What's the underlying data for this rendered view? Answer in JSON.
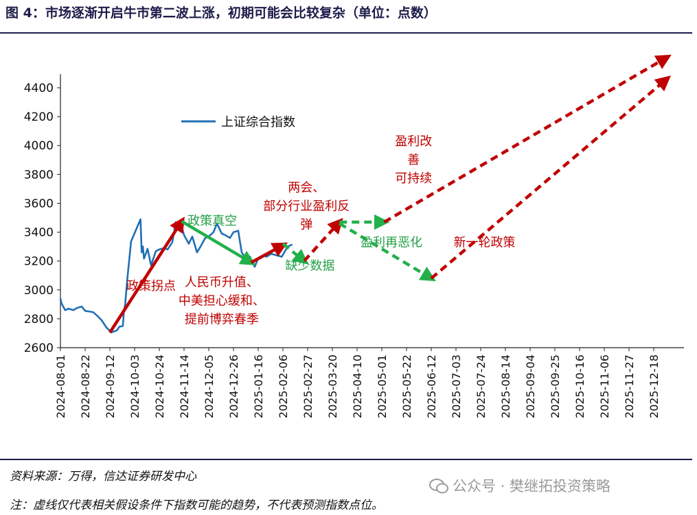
{
  "header": {
    "title": "图 4：市场逐渐开启牛市第二波上涨，初期可能会比较复杂（单位：点数）"
  },
  "footer": {
    "source": "资料来源：万得，信达证券研发中心",
    "note": "注：虚线仅代表相关假设条件下指数可能的趋势，不代表预测指数点位。",
    "watermark": "公众号 · 樊继拓投资策略"
  },
  "colors": {
    "index_line": "#1f6fb5",
    "red_arrow": "#c00000",
    "green_arrow": "#22b04a",
    "red_text": "#c00000",
    "green_text": "#22a046"
  },
  "chart_data": {
    "type": "line",
    "title": "",
    "xlabel": "",
    "ylabel": "",
    "ylim": [
      2600,
      4400
    ],
    "yticks": [
      2600,
      2800,
      3000,
      3200,
      3400,
      3600,
      3800,
      4000,
      4200,
      4400
    ],
    "xrange": [
      "2024-08-01",
      "2025-12-29"
    ],
    "xticks": [
      "2024-08-01",
      "2024-08-22",
      "2024-09-12",
      "2024-10-03",
      "2024-10-24",
      "2024-11-14",
      "2024-12-05",
      "2024-12-26",
      "2025-01-16",
      "2025-02-06",
      "2025-02-27",
      "2025-03-20",
      "2025-04-10",
      "2025-05-01",
      "2025-05-22",
      "2025-06-12",
      "2025-07-03",
      "2025-07-24",
      "2025-08-14",
      "2025-09-04",
      "2025-09-25",
      "2025-10-16",
      "2025-11-06",
      "2025-11-27",
      "2025-12-18"
    ],
    "legend": {
      "position": "top-left",
      "entries": [
        "上证综合指数"
      ]
    },
    "series": [
      {
        "name": "上证综合指数",
        "x": [
          "2024-08-01",
          "2024-08-02",
          "2024-08-05",
          "2024-08-08",
          "2024-08-12",
          "2024-08-15",
          "2024-08-19",
          "2024-08-22",
          "2024-08-26",
          "2024-08-29",
          "2024-09-02",
          "2024-09-05",
          "2024-09-09",
          "2024-09-11",
          "2024-09-13",
          "2024-09-18",
          "2024-09-20",
          "2024-09-23",
          "2024-09-24",
          "2024-09-25",
          "2024-09-26",
          "2024-09-27",
          "2024-09-30",
          "2024-10-08",
          "2024-10-09",
          "2024-10-10",
          "2024-10-11",
          "2024-10-14",
          "2024-10-17",
          "2024-10-21",
          "2024-10-24",
          "2024-10-28",
          "2024-10-31",
          "2024-11-04",
          "2024-11-07",
          "2024-11-08",
          "2024-11-11",
          "2024-11-14",
          "2024-11-18",
          "2024-11-21",
          "2024-11-25",
          "2024-11-28",
          "2024-12-02",
          "2024-12-05",
          "2024-12-09",
          "2024-12-12",
          "2024-12-16",
          "2024-12-19",
          "2024-12-23",
          "2024-12-26",
          "2024-12-30",
          "2025-01-02",
          "2025-01-06",
          "2025-01-09",
          "2025-01-13",
          "2025-01-16",
          "2025-01-20",
          "2025-01-23",
          "2025-01-27",
          "2025-02-05",
          "2025-02-10",
          "2025-02-14"
        ],
        "values": [
          2940,
          2905,
          2860,
          2870,
          2860,
          2875,
          2885,
          2855,
          2850,
          2845,
          2815,
          2790,
          2740,
          2725,
          2705,
          2720,
          2745,
          2750,
          2860,
          2900,
          3000,
          3090,
          3336,
          3489,
          3260,
          3301,
          3217,
          3285,
          3170,
          3268,
          3280,
          3290,
          3280,
          3330,
          3470,
          3452,
          3470,
          3380,
          3320,
          3370,
          3260,
          3300,
          3360,
          3370,
          3400,
          3460,
          3390,
          3380,
          3360,
          3400,
          3410,
          3260,
          3210,
          3230,
          3160,
          3220,
          3240,
          3230,
          3250,
          3230,
          3300,
          3315
        ]
      }
    ],
    "arrows": [
      {
        "style": "solid",
        "color": "red",
        "from": [
          "2024-09-12",
          2705
        ],
        "to": [
          "2024-11-12",
          3475
        ]
      },
      {
        "style": "solid",
        "color": "green",
        "from": [
          "2024-11-12",
          3475
        ],
        "to": [
          "2025-01-10",
          3190
        ]
      },
      {
        "style": "solid",
        "color": "red",
        "from": [
          "2025-01-10",
          3190
        ],
        "to": [
          "2025-02-06",
          3310
        ]
      },
      {
        "style": "dashed",
        "color": "green",
        "from": [
          "2025-02-06",
          3320
        ],
        "to": [
          "2025-02-24",
          3200
        ]
      },
      {
        "style": "dashed",
        "color": "red",
        "from": [
          "2025-02-24",
          3200
        ],
        "to": [
          "2025-03-26",
          3470
        ]
      },
      {
        "style": "dashed",
        "color": "green",
        "from": [
          "2025-03-26",
          3470
        ],
        "to": [
          "2025-05-03",
          3470
        ]
      },
      {
        "style": "dashed",
        "color": "green",
        "from": [
          "2025-03-26",
          3460
        ],
        "to": [
          "2025-06-12",
          3080
        ]
      },
      {
        "style": "dashed",
        "color": "red",
        "from": [
          "2025-05-03",
          3470
        ],
        "to": [
          "2025-12-29",
          4610
        ]
      },
      {
        "style": "dashed",
        "color": "red",
        "from": [
          "2025-06-12",
          3080
        ],
        "to": [
          "2025-12-29",
          4460
        ]
      }
    ],
    "annotations": [
      {
        "color": "red",
        "lines": [
          "政策拐点"
        ],
        "at": [
          "2024-09-26",
          3000
        ]
      },
      {
        "color": "green",
        "lines": [
          "政策真空"
        ],
        "at": [
          "2024-11-17",
          3450
        ]
      },
      {
        "color": "red",
        "lines": [
          "人民币升值、",
          "中美担心缓和、",
          "提前博弈春季"
        ],
        "at": [
          "2024-12-16",
          3025
        ]
      },
      {
        "color": "green",
        "lines": [
          "缺少数据"
        ],
        "at": [
          "2025-02-08",
          3140
        ]
      },
      {
        "color": "red",
        "lines": [
          "两会、",
          "部分行业盈利反",
          "弹"
        ],
        "at": [
          "2025-02-26",
          3680
        ]
      },
      {
        "color": "red",
        "lines": [
          "盈利改",
          "善",
          "可持续"
        ],
        "at": [
          "2025-05-28",
          4000
        ]
      },
      {
        "color": "green",
        "lines": [
          "盈利再恶化"
        ],
        "at": [
          "2025-04-13",
          3300
        ]
      },
      {
        "color": "red",
        "lines": [
          "新一轮政策"
        ],
        "at": [
          "2025-07-01",
          3300
        ]
      }
    ]
  }
}
